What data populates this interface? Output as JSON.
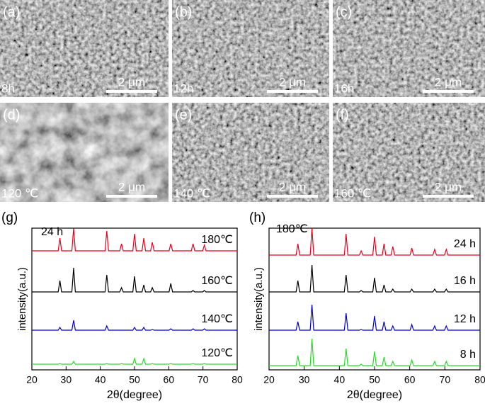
{
  "images": [
    {
      "label": "(a)",
      "caption": "8h",
      "scale": "2 μm"
    },
    {
      "label": "(b)",
      "caption": "12h",
      "scale": "2 μm"
    },
    {
      "label": "(c)",
      "caption": "16h",
      "scale": "2 μm"
    },
    {
      "label": "(d)",
      "caption": "120 ℃",
      "scale": "2 μm"
    },
    {
      "label": "(e)",
      "caption": "140 ℃",
      "scale": "2 μm"
    },
    {
      "label": "(f)",
      "caption": "160 ℃",
      "scale": "2 μm"
    }
  ],
  "chart_data": [
    {
      "type": "line",
      "panel": "(g)",
      "annotation": "24 h",
      "xlabel": "2θ(degree)",
      "ylabel": "intensity(a.u.)",
      "xlim": [
        20,
        80
      ],
      "xticks": [
        20,
        30,
        40,
        50,
        60,
        70,
        80
      ],
      "ylim": [
        0,
        100
      ],
      "x": [
        20,
        27.7,
        28.2,
        28.7,
        31.7,
        32.2,
        32.7,
        41.4,
        41.9,
        42.4,
        45.7,
        46.2,
        46.7,
        49.5,
        50,
        50.5,
        52.2,
        52.7,
        53.2,
        54.7,
        55.2,
        55.7,
        60.1,
        60.6,
        61.1,
        66.6,
        67.1,
        67.6,
        69.9,
        70.4,
        70.9,
        80
      ],
      "series": [
        {
          "name": "180℃",
          "color": "#e8001c",
          "values": [
            84,
            84,
            93,
            84,
            84,
            100,
            84,
            84,
            98,
            84,
            84,
            89,
            84,
            84,
            96,
            84,
            84,
            93,
            84,
            84,
            90,
            84,
            84,
            89,
            84,
            84,
            89,
            84,
            84,
            88,
            84,
            84
          ]
        },
        {
          "name": "160℃",
          "color": "#000000",
          "values": [
            55,
            55,
            63,
            55,
            55,
            72,
            55,
            55,
            67,
            55,
            55,
            58,
            55,
            55,
            66,
            55,
            55,
            60,
            55,
            55,
            58,
            55,
            55,
            61,
            55,
            55,
            56,
            55,
            55,
            56,
            55,
            55
          ]
        },
        {
          "name": "140℃",
          "color": "#0000cc",
          "values": [
            28,
            28,
            30,
            28,
            28,
            35,
            28,
            28,
            31,
            28,
            28,
            28,
            28,
            28,
            30,
            28,
            28,
            30,
            28,
            28,
            28.5,
            28,
            28,
            29,
            28,
            28,
            29,
            28,
            28,
            29,
            28,
            28
          ]
        },
        {
          "name": "120℃",
          "color": "#22dd22",
          "values": [
            4,
            4,
            4.5,
            4,
            4,
            6,
            4,
            4,
            4.5,
            4,
            4,
            4.5,
            4,
            4,
            8,
            4,
            4,
            8,
            4,
            4,
            4.5,
            4,
            4,
            4.5,
            4,
            4,
            4.5,
            4,
            4,
            4.5,
            4,
            4
          ]
        }
      ]
    },
    {
      "type": "line",
      "panel": "(h)",
      "annotation": "180℃",
      "xlabel": "2θ(degree)",
      "ylabel": "intensity(a.u.)",
      "xlim": [
        20,
        80
      ],
      "xticks": [
        20,
        30,
        40,
        50,
        60,
        70,
        80
      ],
      "ylim": [
        0,
        100
      ],
      "x": [
        20,
        27.7,
        28.2,
        28.7,
        31.7,
        32.2,
        32.7,
        41.4,
        41.9,
        42.4,
        45.7,
        46.2,
        46.7,
        49.5,
        50,
        50.5,
        52.2,
        52.7,
        53.2,
        54.7,
        55.2,
        55.7,
        60.1,
        60.6,
        61.1,
        66.6,
        67.1,
        67.6,
        69.9,
        70.4,
        70.9,
        80
      ],
      "series": [
        {
          "name": "24 h",
          "color": "#e8001c",
          "values": [
            81,
            81,
            89,
            81,
            81,
            100,
            81,
            81,
            96,
            81,
            81,
            84,
            81,
            81,
            94,
            81,
            81,
            89,
            81,
            81,
            87,
            81,
            81,
            86,
            81,
            81,
            85,
            81,
            81,
            85,
            81,
            81
          ]
        },
        {
          "name": "16 h",
          "color": "#000000",
          "values": [
            55,
            55,
            63,
            55,
            55,
            74,
            55,
            55,
            67,
            55,
            55,
            56,
            55,
            55,
            65,
            55,
            55,
            60,
            55,
            55,
            57,
            55,
            55,
            57,
            55,
            55,
            57,
            55,
            55,
            57,
            55,
            55
          ]
        },
        {
          "name": "12 h",
          "color": "#0000cc",
          "values": [
            28,
            28,
            34,
            28,
            28,
            46,
            28,
            28,
            40,
            28,
            28,
            28.5,
            28,
            28,
            38,
            28,
            28,
            34,
            28,
            28,
            31,
            28,
            28,
            32,
            28,
            28,
            31,
            28,
            28,
            31,
            28,
            28
          ]
        },
        {
          "name": "8 h",
          "color": "#22dd22",
          "values": [
            3,
            3,
            10,
            3,
            3,
            22,
            3,
            3,
            15,
            3,
            3,
            4,
            3,
            3,
            13,
            3,
            3,
            9,
            3,
            3,
            6,
            3,
            3,
            7,
            3,
            3,
            6,
            3,
            3,
            6,
            3,
            3
          ]
        }
      ]
    }
  ]
}
